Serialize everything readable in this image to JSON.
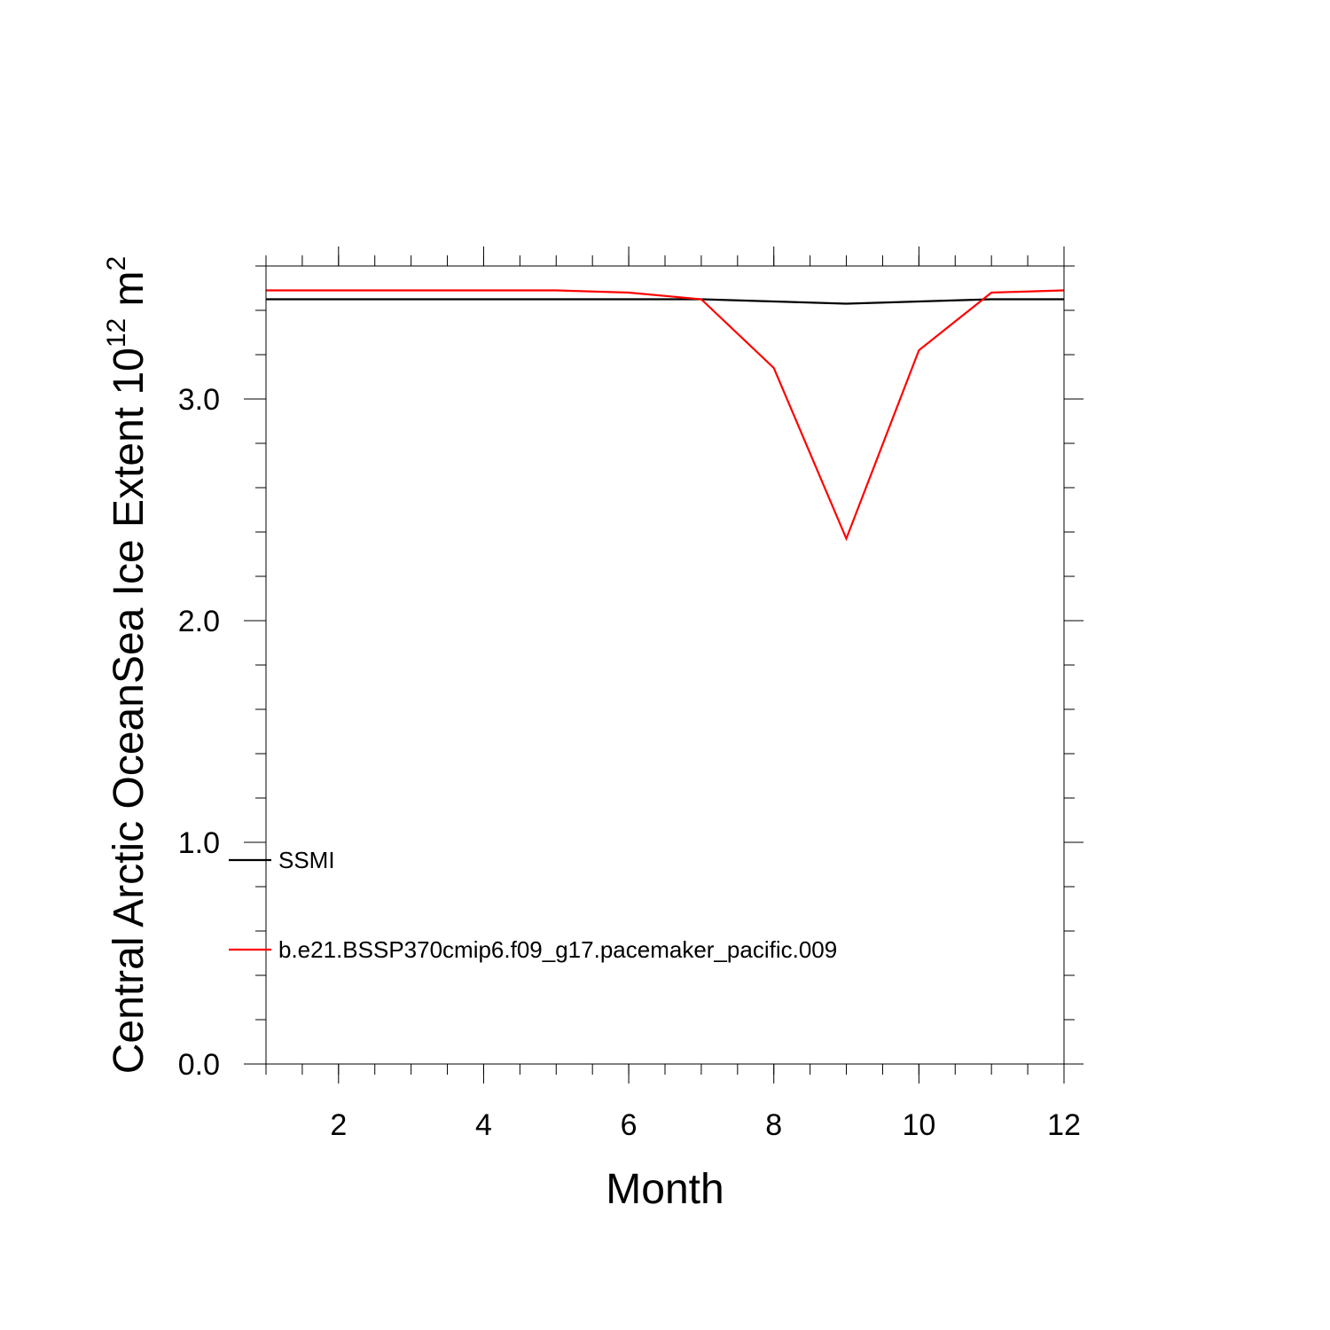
{
  "chart_data": {
    "type": "line",
    "title": "",
    "xlabel": "Month",
    "ylabel": {
      "text": "Central Arctic OceanSea Ice Extent 10",
      "exp1": "12",
      "unit": " m",
      "exp2": "2"
    },
    "xlim": [
      1,
      12
    ],
    "ylim": [
      0,
      3.6
    ],
    "xticks": [
      2,
      4,
      6,
      8,
      10,
      12
    ],
    "xtick_labels": [
      "2",
      "4",
      "6",
      "8",
      "10",
      "12"
    ],
    "yticks": [
      0,
      1,
      2,
      3
    ],
    "ytick_labels": [
      "0.0",
      "1.0",
      "2.0",
      "3.0"
    ],
    "x": [
      1,
      2,
      3,
      4,
      5,
      6,
      7,
      8,
      9,
      10,
      11,
      12
    ],
    "series": [
      {
        "name": "SSMI",
        "color": "#000000",
        "values": [
          3.45,
          3.45,
          3.45,
          3.45,
          3.45,
          3.45,
          3.45,
          3.44,
          3.43,
          3.44,
          3.45,
          3.45
        ]
      },
      {
        "name": "b.e21.BSSP370cmip6.f09_g17.pacemaker_pacific.009",
        "color": "#ff0000",
        "values": [
          3.49,
          3.49,
          3.49,
          3.49,
          3.49,
          3.48,
          3.45,
          3.14,
          2.37,
          3.22,
          3.48,
          3.49
        ]
      }
    ],
    "legend_placement": "lower-left",
    "grid": false
  }
}
